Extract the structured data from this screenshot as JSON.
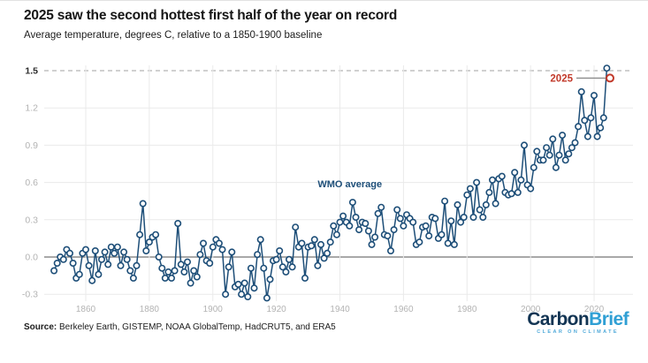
{
  "header": {
    "title": "2025 saw the second hottest first half of the year on record",
    "subtitle": "Average temperature, degrees C, relative to a 1850-1900 baseline"
  },
  "chart_data": {
    "type": "line",
    "title": "2025 saw the second hottest first half of the year on record",
    "subtitle": "Average temperature, degrees C, relative to a 1850-1900 baseline",
    "xlabel": "",
    "ylabel": "",
    "x_ticks": [
      1860,
      1880,
      1900,
      1920,
      1940,
      1960,
      1980,
      2000,
      2020
    ],
    "y_ticks": [
      -0.3,
      0.0,
      0.3,
      0.6,
      0.9,
      1.2,
      1.5
    ],
    "ylim": [
      -0.4,
      1.62
    ],
    "xlim": [
      1849,
      2027
    ],
    "grid": true,
    "legend_position": "none",
    "zero_line": 0.0,
    "threshold_line": {
      "value": 1.5,
      "style": "dashed",
      "color": "#b5b5b5"
    },
    "series": [
      {
        "name": "WMO average",
        "start_year": 1850,
        "end_year": 2024,
        "values": [
          -0.11,
          -0.05,
          0.0,
          -0.02,
          0.06,
          0.03,
          -0.05,
          -0.17,
          -0.14,
          0.03,
          0.06,
          -0.07,
          -0.19,
          0.05,
          -0.14,
          -0.02,
          0.04,
          -0.06,
          0.08,
          0.03,
          0.08,
          -0.07,
          0.04,
          -0.02,
          -0.11,
          -0.17,
          -0.07,
          0.18,
          0.43,
          0.05,
          0.12,
          0.16,
          0.18,
          0.0,
          -0.09,
          -0.17,
          -0.12,
          -0.17,
          -0.11,
          0.27,
          -0.06,
          -0.12,
          -0.04,
          -0.21,
          -0.11,
          -0.16,
          0.02,
          0.11,
          -0.03,
          -0.05,
          0.08,
          0.14,
          0.11,
          0.06,
          -0.3,
          -0.08,
          0.04,
          -0.24,
          -0.22,
          -0.3,
          -0.21,
          -0.32,
          -0.09,
          -0.25,
          0.02,
          0.14,
          -0.09,
          -0.33,
          -0.18,
          -0.03,
          -0.02,
          0.05,
          -0.08,
          -0.12,
          -0.02,
          -0.08,
          0.24,
          0.08,
          0.11,
          -0.17,
          0.08,
          0.09,
          0.14,
          -0.07,
          0.1,
          -0.01,
          0.03,
          0.12,
          0.25,
          0.18,
          0.28,
          0.33,
          0.28,
          0.25,
          0.44,
          0.32,
          0.22,
          0.28,
          0.27,
          0.21,
          0.1,
          0.16,
          0.35,
          0.4,
          0.18,
          0.17,
          0.05,
          0.22,
          0.38,
          0.31,
          0.25,
          0.34,
          0.31,
          0.28,
          0.1,
          0.12,
          0.24,
          0.25,
          0.17,
          0.32,
          0.31,
          0.15,
          0.18,
          0.45,
          0.11,
          0.29,
          0.1,
          0.42,
          0.28,
          0.32,
          0.5,
          0.55,
          0.32,
          0.6,
          0.38,
          0.32,
          0.42,
          0.52,
          0.62,
          0.43,
          0.63,
          0.65,
          0.52,
          0.5,
          0.51,
          0.68,
          0.52,
          0.62,
          0.9,
          0.58,
          0.55,
          0.72,
          0.85,
          0.78,
          0.78,
          0.88,
          0.82,
          0.95,
          0.72,
          0.82,
          0.98,
          0.78,
          0.83,
          0.88,
          0.92,
          1.05,
          1.33,
          1.1,
          0.97,
          1.12,
          1.3,
          0.97,
          1.04,
          1.12,
          1.52
        ]
      }
    ],
    "highlight_point": {
      "year": 2025,
      "value": 1.44,
      "label": "2025"
    },
    "annotations": [
      {
        "text": "WMO average",
        "near_year": 1933,
        "near_value": 0.56
      }
    ],
    "colors": {
      "line": "#1d4e78",
      "marker_fill": "#ffffff",
      "highlight": "#c23a2b",
      "grid": "#eaeaea",
      "zero_line": "#8c8c8c",
      "tick_label": "#b3b3b3",
      "threshold_label": "#2b2b2b",
      "leader_line": "#8c8c8c"
    }
  },
  "footer": {
    "source_label": "Source:",
    "source_text": " Berkeley Earth, GISTEMP, NOAA GlobalTemp, HadCRUT5, and ERA5"
  },
  "logo": {
    "part1": "Carbon",
    "part2": "Brief",
    "tagline": "CLEAR ON CLIMATE"
  }
}
